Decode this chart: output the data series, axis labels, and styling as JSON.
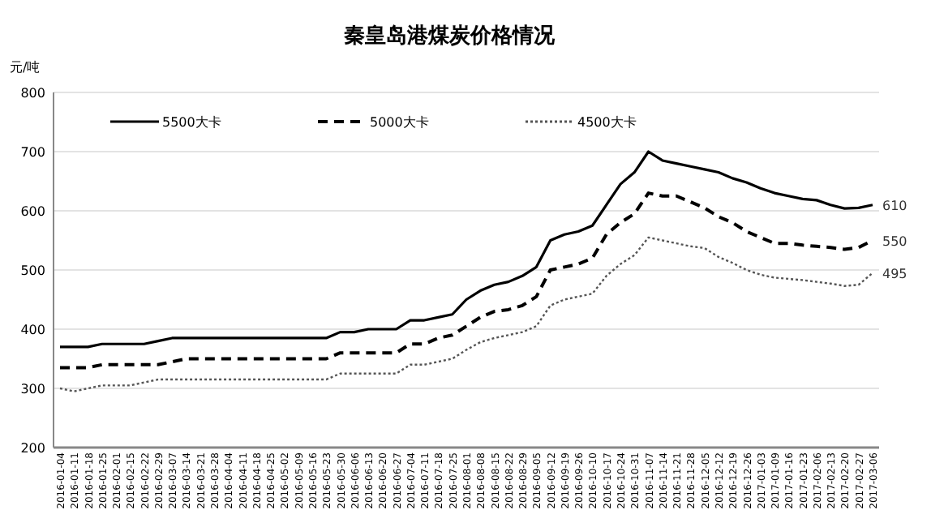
{
  "chart_data": {
    "type": "line",
    "title": "秦皇岛港煤炭价格情况",
    "ylabel": "元/吨",
    "categories": [
      "2016-01-04",
      "2016-01-11",
      "2016-01-18",
      "2016-01-25",
      "2016-02-01",
      "2016-02-15",
      "2016-02-22",
      "2016-02-29",
      "2016-03-07",
      "2016-03-14",
      "2016-03-21",
      "2016-03-28",
      "2016-04-04",
      "2016-04-11",
      "2016-04-18",
      "2016-04-25",
      "2016-05-02",
      "2016-05-09",
      "2016-05-16",
      "2016-05-23",
      "2016-05-30",
      "2016-06-06",
      "2016-06-13",
      "2016-06-20",
      "2016-06-27",
      "2016-07-04",
      "2016-07-11",
      "2016-07-18",
      "2016-07-25",
      "2016-08-01",
      "2016-08-08",
      "2016-08-15",
      "2016-08-22",
      "2016-08-29",
      "2016-09-05",
      "2016-09-12",
      "2016-09-19",
      "2016-09-26",
      "2016-10-10",
      "2016-10-17",
      "2016-10-24",
      "2016-10-31",
      "2016-11-07",
      "2016-11-14",
      "2016-11-21",
      "2016-11-28",
      "2016-12-05",
      "2016-12-12",
      "2016-12-19",
      "2016-12-26",
      "2017-01-03",
      "2017-01-09",
      "2017-01-16",
      "2017-01-23",
      "2017-02-06",
      "2017-02-13",
      "2017-02-20",
      "2017-02-27",
      "2017-03-06"
    ],
    "series": [
      {
        "name": "5500大卡",
        "color": "#000000",
        "line_style": "solid",
        "values": [
          370,
          370,
          370,
          375,
          375,
          375,
          375,
          380,
          385,
          385,
          385,
          385,
          385,
          385,
          385,
          385,
          385,
          385,
          385,
          385,
          395,
          395,
          400,
          400,
          400,
          415,
          415,
          420,
          425,
          450,
          465,
          475,
          480,
          490,
          505,
          550,
          560,
          565,
          575,
          610,
          645,
          665,
          700,
          685,
          680,
          675,
          670,
          665,
          655,
          648,
          638,
          630,
          625,
          620,
          618,
          610,
          604,
          605,
          610
        ],
        "value_labels": [
          null,
          null,
          null,
          null,
          null,
          null,
          null,
          null,
          null,
          null,
          null,
          null,
          null,
          null,
          null,
          null,
          null,
          null,
          null,
          null,
          null,
          null,
          null,
          null,
          null,
          null,
          null,
          null,
          null,
          null,
          null,
          null,
          null,
          null,
          null,
          null,
          null,
          null,
          null,
          null,
          null,
          null,
          null,
          null,
          null,
          null,
          null,
          null,
          null,
          null,
          null,
          null,
          null,
          null,
          null,
          null,
          null,
          null,
          "610"
        ]
      },
      {
        "name": "5000大卡",
        "color": "#000000",
        "line_style": "dashed",
        "values": [
          335,
          335,
          335,
          340,
          340,
          340,
          340,
          340,
          345,
          350,
          350,
          350,
          350,
          350,
          350,
          350,
          350,
          350,
          350,
          350,
          360,
          360,
          360,
          360,
          360,
          375,
          375,
          385,
          390,
          405,
          420,
          430,
          433,
          440,
          455,
          500,
          505,
          510,
          520,
          560,
          580,
          595,
          630,
          625,
          625,
          615,
          605,
          590,
          580,
          565,
          555,
          545,
          545,
          542,
          540,
          538,
          535,
          538,
          550
        ],
        "value_labels": [
          null,
          null,
          null,
          null,
          null,
          null,
          null,
          null,
          null,
          null,
          null,
          null,
          null,
          null,
          null,
          null,
          null,
          null,
          null,
          null,
          null,
          null,
          null,
          null,
          null,
          null,
          null,
          null,
          null,
          null,
          null,
          null,
          null,
          null,
          null,
          null,
          null,
          null,
          null,
          null,
          null,
          null,
          null,
          null,
          null,
          null,
          null,
          null,
          null,
          null,
          null,
          null,
          null,
          null,
          null,
          null,
          null,
          null,
          "550"
        ]
      },
      {
        "name": "4500大卡",
        "color": "#555555",
        "line_style": "dotted",
        "values": [
          300,
          295,
          300,
          305,
          305,
          305,
          310,
          315,
          315,
          315,
          315,
          315,
          315,
          315,
          315,
          315,
          315,
          315,
          315,
          315,
          325,
          325,
          325,
          325,
          325,
          340,
          340,
          345,
          350,
          365,
          378,
          385,
          390,
          395,
          405,
          440,
          450,
          455,
          460,
          490,
          510,
          525,
          555,
          550,
          545,
          540,
          537,
          522,
          512,
          500,
          492,
          487,
          485,
          483,
          480,
          477,
          473,
          475,
          495
        ],
        "value_labels": [
          null,
          null,
          null,
          null,
          null,
          null,
          null,
          null,
          null,
          null,
          null,
          null,
          null,
          null,
          null,
          null,
          null,
          null,
          null,
          null,
          null,
          null,
          null,
          null,
          null,
          null,
          null,
          null,
          null,
          null,
          null,
          null,
          null,
          null,
          null,
          null,
          null,
          null,
          null,
          null,
          null,
          null,
          null,
          null,
          null,
          null,
          null,
          null,
          null,
          null,
          null,
          null,
          null,
          null,
          null,
          null,
          null,
          null,
          "495"
        ]
      }
    ],
    "ylim": [
      200,
      800
    ],
    "yticks": [
      200,
      300,
      400,
      500,
      600,
      700,
      800
    ],
    "grid": "y",
    "legend": "top",
    "marker": "none"
  }
}
